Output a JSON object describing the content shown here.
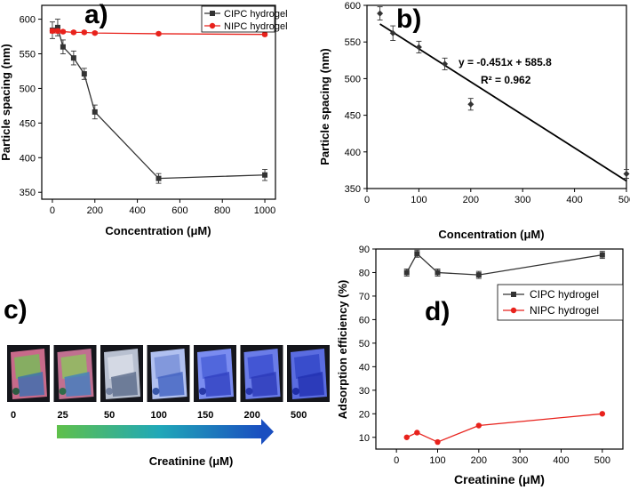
{
  "colors": {
    "cipc": "#333333",
    "nipc": "#e8221c",
    "fit": "#000000",
    "gradient_start": "#5fc04a",
    "gradient_mid": "#20a8b8",
    "gradient_end": "#1a4fc0"
  },
  "chart_data": [
    {
      "id": "a",
      "panel_label": "a)",
      "type": "line",
      "xlabel": "Concentration (μM)",
      "ylabel": "Particle spacing (nm)",
      "xlim": [
        -50,
        1050
      ],
      "ylim": [
        340,
        620
      ],
      "xticks": [
        0,
        200,
        400,
        600,
        800,
        1000
      ],
      "yticks": [
        350,
        400,
        450,
        500,
        550,
        600
      ],
      "legend_position": "top-right",
      "series": [
        {
          "name": "CIPC hydrogel",
          "marker": "square",
          "x": [
            0,
            25,
            50,
            100,
            150,
            200,
            500,
            1000
          ],
          "values": [
            584,
            588,
            560,
            544,
            521,
            466,
            370,
            375
          ],
          "errors": [
            12,
            12,
            10,
            10,
            8,
            10,
            7,
            8
          ]
        },
        {
          "name": "NIPC hydrogel",
          "marker": "circle",
          "x": [
            0,
            25,
            50,
            100,
            150,
            200,
            500,
            1000
          ],
          "values": [
            583,
            583,
            582,
            581,
            581,
            580,
            579,
            578
          ],
          "errors": [
            3,
            3,
            2,
            2,
            2,
            2,
            2,
            2
          ]
        }
      ]
    },
    {
      "id": "b",
      "panel_label": "b)",
      "type": "scatter",
      "xlabel": "Concentration (μM)",
      "ylabel": "Particle spacing (nm)",
      "xlim": [
        0,
        500
      ],
      "ylim": [
        350,
        600
      ],
      "xticks": [
        0,
        100,
        200,
        300,
        400,
        500
      ],
      "yticks": [
        350,
        400,
        450,
        500,
        550,
        600
      ],
      "equation": "y = -0.451x + 585.8",
      "r_squared": "R² = 0.962",
      "fit": {
        "slope": -0.451,
        "intercept": 585.8,
        "x_range": [
          25,
          500
        ]
      },
      "series": [
        {
          "name": "CIPC hydrogel",
          "marker": "diamond",
          "x": [
            25,
            50,
            100,
            150,
            200,
            500
          ],
          "values": [
            589,
            562,
            543,
            520,
            465,
            370
          ],
          "errors": [
            9,
            10,
            8,
            8,
            8,
            6
          ]
        }
      ]
    },
    {
      "id": "d",
      "panel_label": "d)",
      "type": "line",
      "xlabel": "Creatinine (μM)",
      "ylabel": "Adsorption efficiency (%)",
      "xlim": [
        -50,
        550
      ],
      "ylim": [
        5,
        90
      ],
      "xticks": [
        0,
        100,
        200,
        300,
        400,
        500
      ],
      "yticks": [
        10,
        20,
        30,
        40,
        50,
        60,
        70,
        80,
        90
      ],
      "legend_position": "middle-right",
      "series": [
        {
          "name": "CIPC hydrogel",
          "marker": "square",
          "x": [
            25,
            50,
            100,
            200,
            500
          ],
          "values": [
            80,
            88,
            80,
            79,
            87.5
          ],
          "errors": [
            1.5,
            1.5,
            1.5,
            1.5,
            1.5
          ]
        },
        {
          "name": "NIPC hydrogel",
          "marker": "circle",
          "x": [
            25,
            50,
            100,
            200,
            500
          ],
          "values": [
            10,
            12,
            8,
            15,
            20
          ],
          "errors": [
            0,
            0,
            0,
            0,
            0
          ]
        }
      ]
    }
  ],
  "photo_panel": {
    "panel_label": "c)",
    "caption": "Creatinine (μM)",
    "samples": [
      {
        "label": "0",
        "tone": [
          "#1d5a3a",
          "#7ab85a",
          "#c86a8a",
          "#3a6fb0"
        ]
      },
      {
        "label": "25",
        "tone": [
          "#1f6a40",
          "#8fc060",
          "#c07090",
          "#4080c0"
        ]
      },
      {
        "label": "50",
        "tone": [
          "#6a7a9a",
          "#d8dde8",
          "#b8c0d0",
          "#5a6a8a"
        ]
      },
      {
        "label": "100",
        "tone": [
          "#2a4aa0",
          "#7a90d8",
          "#b0c0f0",
          "#4060c0"
        ]
      },
      {
        "label": "150",
        "tone": [
          "#2030a0",
          "#4a60d8",
          "#7a8cf0",
          "#3040c0"
        ]
      },
      {
        "label": "200",
        "tone": [
          "#2030a8",
          "#3c50d0",
          "#6a7ce8",
          "#2a38b8"
        ]
      },
      {
        "label": "500",
        "tone": [
          "#1828a0",
          "#3448c8",
          "#5a6ce0",
          "#2030b0"
        ]
      }
    ]
  }
}
